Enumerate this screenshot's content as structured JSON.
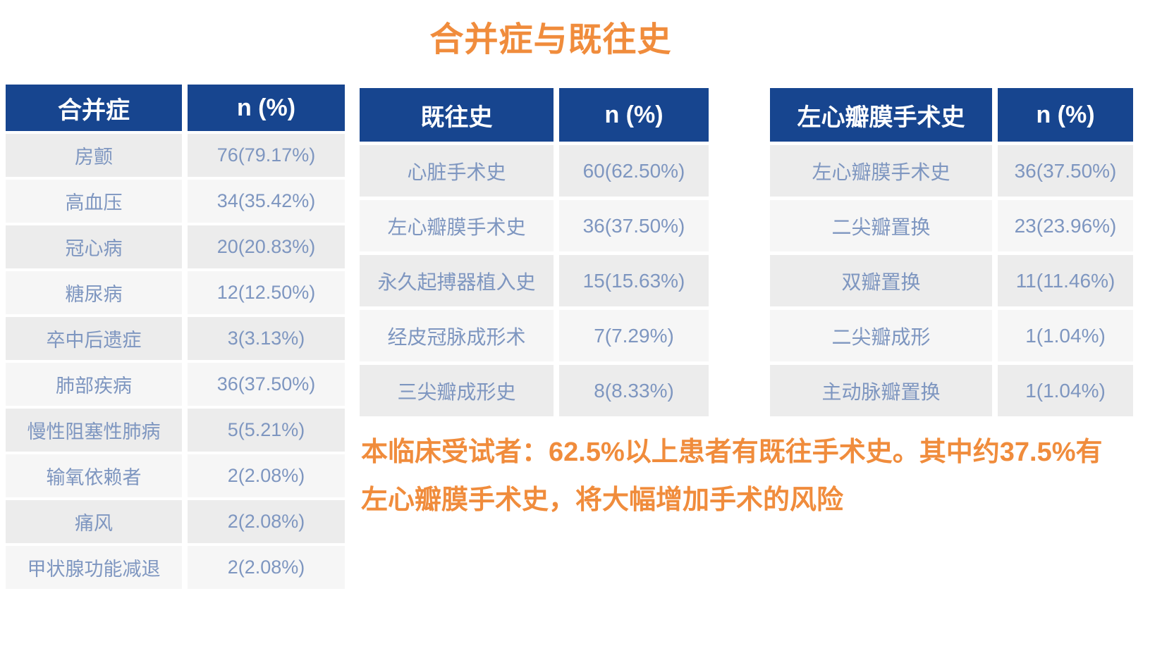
{
  "title": "合并症与既往史",
  "colors": {
    "header_bg": "#17458F",
    "header_text": "#FFFFFF",
    "accent_orange": "#F08C3C",
    "cell_text": "#7E96C0",
    "row_dark": "#ECECEC",
    "row_light": "#F6F6F6"
  },
  "tables": [
    {
      "id": "comorbidities",
      "headers": [
        "合并症",
        "n (%)"
      ],
      "rows": [
        [
          "房颤",
          "76(79.17%)"
        ],
        [
          "高血压",
          "34(35.42%)"
        ],
        [
          "冠心病",
          "20(20.83%)"
        ],
        [
          "糖尿病",
          "12(12.50%)"
        ],
        [
          "卒中后遗症",
          "3(3.13%)"
        ],
        [
          "肺部疾病",
          "36(37.50%)"
        ],
        [
          "慢性阻塞性肺病",
          "5(5.21%)"
        ],
        [
          "输氧依赖者",
          "2(2.08%)"
        ],
        [
          "痛风",
          "2(2.08%)"
        ],
        [
          "甲状腺功能减退",
          "2(2.08%)"
        ]
      ]
    },
    {
      "id": "medical-history",
      "headers": [
        "既往史",
        "n (%)"
      ],
      "rows": [
        [
          "心脏手术史",
          "60(62.50%)"
        ],
        [
          "左心瓣膜手术史",
          "36(37.50%)"
        ],
        [
          "永久起搏器植入史",
          "15(15.63%)"
        ],
        [
          "经皮冠脉成形术",
          "7(7.29%)"
        ],
        [
          "三尖瓣成形史",
          "8(8.33%)"
        ]
      ]
    },
    {
      "id": "left-valve-surgery",
      "headers": [
        "左心瓣膜手术史",
        "n (%)"
      ],
      "rows": [
        [
          "左心瓣膜手术史",
          "36(37.50%)"
        ],
        [
          "二尖瓣置换",
          "23(23.96%)"
        ],
        [
          "双瓣置换",
          "11(11.46%)"
        ],
        [
          "二尖瓣成形",
          "1(1.04%)"
        ],
        [
          "主动脉瓣置换",
          "1(1.04%)"
        ]
      ]
    }
  ],
  "note": {
    "line1": "本临床受试者：62.5%以上患者有既往手术史。其中约37.5%有",
    "line2": "左心瓣膜手术史，将大幅增加手术的风险"
  }
}
